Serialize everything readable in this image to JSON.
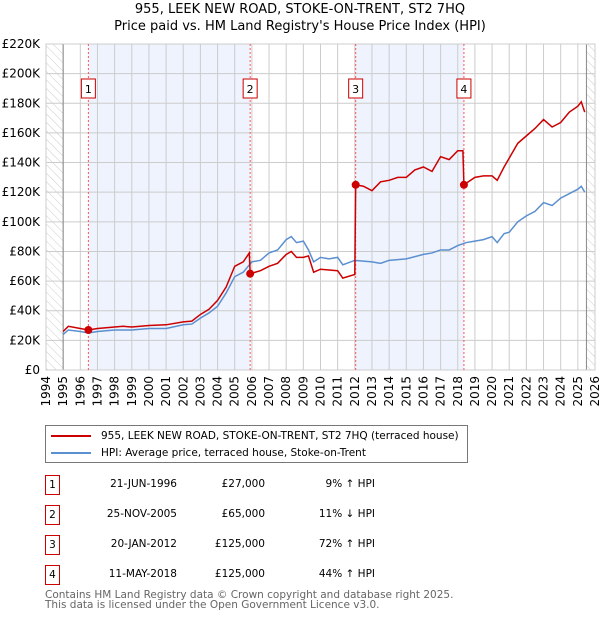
{
  "chart_data": {
    "type": "line",
    "title": "955, LEEK NEW ROAD, STOKE-ON-TRENT, ST2 7HQ",
    "subtitle": "Price paid vs. HM Land Registry's House Price Index (HPI)",
    "xlim": [
      1994,
      2026
    ],
    "ylim": [
      0,
      220000
    ],
    "x_ticks": [
      "1994",
      "1995",
      "1996",
      "1997",
      "1998",
      "1999",
      "2000",
      "2001",
      "2002",
      "2003",
      "2004",
      "2005",
      "2006",
      "2007",
      "2008",
      "2009",
      "2010",
      "2011",
      "2012",
      "2013",
      "2014",
      "2015",
      "2016",
      "2017",
      "2018",
      "2019",
      "2020",
      "2021",
      "2022",
      "2023",
      "2024",
      "2025",
      "2026"
    ],
    "y_ticks": [
      {
        "v": 0,
        "label": "£0"
      },
      {
        "v": 20000,
        "label": "£20K"
      },
      {
        "v": 40000,
        "label": "£40K"
      },
      {
        "v": 60000,
        "label": "£60K"
      },
      {
        "v": 80000,
        "label": "£80K"
      },
      {
        "v": 100000,
        "label": "£100K"
      },
      {
        "v": 120000,
        "label": "£120K"
      },
      {
        "v": 140000,
        "label": "£140K"
      },
      {
        "v": 160000,
        "label": "£160K"
      },
      {
        "v": 180000,
        "label": "£180K"
      },
      {
        "v": 200000,
        "label": "£200K"
      },
      {
        "v": 220000,
        "label": "£220K"
      }
    ],
    "grid": true,
    "hatched_ranges": [
      [
        1994,
        1995
      ],
      [
        2025.5,
        2026
      ]
    ],
    "shaded_ranges": [
      [
        1996.47,
        2005.9
      ],
      [
        2012.05,
        2018.36
      ]
    ],
    "series": [
      {
        "name": "955, LEEK NEW ROAD, STOKE-ON-TRENT, ST2 7HQ (terraced house)",
        "color": "#cc0000",
        "x": [
          1995,
          1995.3,
          1996,
          1996.47,
          1997,
          1998,
          1998.5,
          1999,
          2000,
          2001,
          2002,
          2002.5,
          2003,
          2003.5,
          2004,
          2004.5,
          2005,
          2005.5,
          2005.85,
          2005.9,
          2006.5,
          2007,
          2007.5,
          2008,
          2008.3,
          2008.6,
          2009,
          2009.3,
          2009.6,
          2010,
          2010.5,
          2011,
          2011.3,
          2012.0,
          2012.05,
          2012.5,
          2013,
          2013.5,
          2014,
          2014.5,
          2015,
          2015.5,
          2016,
          2016.5,
          2017,
          2017.5,
          2018,
          2018.3,
          2018.36,
          2019,
          2019.5,
          2020,
          2020.3,
          2020.7,
          2021,
          2021.5,
          2022,
          2022.5,
          2023,
          2023.5,
          2024,
          2024.5,
          2025,
          2025.2,
          2025.4
        ],
        "y": [
          26000,
          29500,
          28000,
          27000,
          28000,
          29000,
          29500,
          29000,
          30000,
          30500,
          32500,
          33000,
          37500,
          41000,
          47000,
          56000,
          70000,
          73000,
          79000,
          65000,
          67000,
          70000,
          72000,
          78000,
          80000,
          76000,
          76000,
          77000,
          66000,
          68000,
          67500,
          67000,
          62000,
          64500,
          125000,
          124000,
          121000,
          127000,
          128000,
          130000,
          130000,
          135000,
          137000,
          134000,
          144000,
          142000,
          148000,
          148000,
          125000,
          130000,
          131000,
          131000,
          128000,
          137000,
          143000,
          153000,
          158000,
          163000,
          169000,
          164000,
          167000,
          174000,
          178000,
          181000,
          174000
        ]
      },
      {
        "name": "HPI: Average price, terraced house, Stoke-on-Trent",
        "color": "#5b8fd0",
        "x": [
          1995,
          1995.3,
          1996,
          1996.47,
          1997,
          1998,
          1999,
          2000,
          2001,
          2002,
          2002.5,
          2003,
          2003.5,
          2004,
          2004.5,
          2005,
          2005.5,
          2006,
          2006.5,
          2007,
          2007.5,
          2008,
          2008.3,
          2008.6,
          2009,
          2009.3,
          2009.6,
          2010,
          2010.5,
          2011,
          2011.3,
          2012,
          2013,
          2013.5,
          2014,
          2015,
          2016,
          2016.5,
          2017,
          2017.5,
          2018,
          2018.5,
          2019,
          2019.5,
          2020,
          2020.3,
          2020.7,
          2021,
          2021.5,
          2022,
          2022.5,
          2023,
          2023.5,
          2024,
          2024.5,
          2025,
          2025.2,
          2025.4
        ],
        "y": [
          24000,
          27000,
          26000,
          25000,
          26000,
          27000,
          27000,
          28000,
          28000,
          30500,
          31000,
          35000,
          38500,
          43000,
          52000,
          63000,
          66000,
          73000,
          74000,
          79000,
          81000,
          88000,
          90000,
          86000,
          87000,
          81000,
          73000,
          76000,
          75000,
          76000,
          71000,
          74000,
          73000,
          72000,
          74000,
          75000,
          78000,
          79000,
          81000,
          81000,
          84000,
          86000,
          87000,
          88000,
          90000,
          86000,
          92000,
          93000,
          100000,
          104000,
          107000,
          113000,
          111000,
          116000,
          119000,
          122000,
          124000,
          120000
        ]
      }
    ],
    "sales": [
      {
        "n": "1",
        "x": 1996.47,
        "y": 27000
      },
      {
        "n": "2",
        "x": 2005.9,
        "y": 65000
      },
      {
        "n": "3",
        "x": 2012.05,
        "y": 125000
      },
      {
        "n": "4",
        "x": 2018.36,
        "y": 125000
      }
    ]
  },
  "legend": {
    "red": "955, LEEK NEW ROAD, STOKE-ON-TRENT, ST2 7HQ (terraced house)",
    "blue": "HPI: Average price, terraced house, Stoke-on-Trent"
  },
  "table": [
    {
      "n": "1",
      "date": "21-JUN-1996",
      "price": "£27,000",
      "hpi": "9% ↑ HPI"
    },
    {
      "n": "2",
      "date": "25-NOV-2005",
      "price": "£65,000",
      "hpi": "11% ↓ HPI"
    },
    {
      "n": "3",
      "date": "20-JAN-2012",
      "price": "£125,000",
      "hpi": "72% ↑ HPI"
    },
    {
      "n": "4",
      "date": "11-MAY-2018",
      "price": "£125,000",
      "hpi": "44% ↑ HPI"
    }
  ],
  "footer": {
    "line1": "Contains HM Land Registry data © Crown copyright and database right 2025.",
    "line2": "This data is licensed under the Open Government Licence v3.0."
  }
}
